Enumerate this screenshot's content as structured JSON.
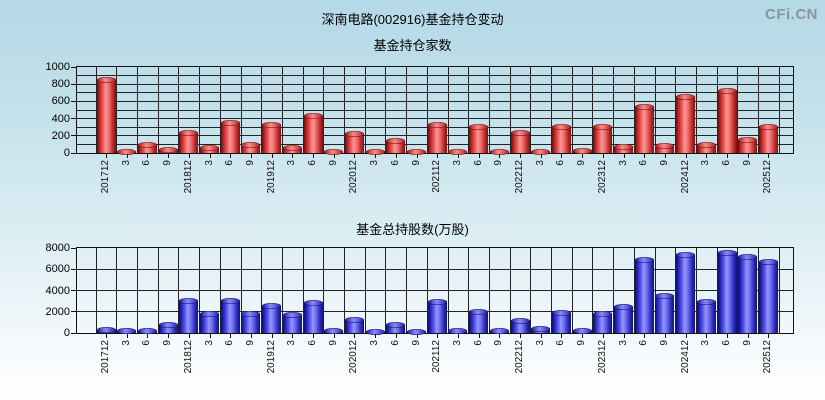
{
  "page": {
    "title": "深南电路(002916)基金持仓变动",
    "watermark": "CFi.CN",
    "background_top": "#b4d9e6",
    "background_bottom": "#ffffff",
    "grid_color": "#222222",
    "red_bar_color": "#e03030",
    "blue_bar_color": "#3535cc"
  },
  "chart_data": [
    {
      "type": "bar",
      "title": "基金持仓家数",
      "series_name": "基金持仓家数",
      "bar_style": "red",
      "legend": false,
      "grid": true,
      "ylim": [
        0,
        1000
      ],
      "ytick_step": 200,
      "grid_minor_step": 100,
      "ytick_labels": [
        "0",
        "200",
        "400",
        "600",
        "800",
        "1000"
      ],
      "categories": [
        "201712",
        "3",
        "6",
        "9",
        "201812",
        "3",
        "6",
        "9",
        "201912",
        "3",
        "6",
        "9",
        "202012",
        "3",
        "6",
        "9",
        "202112",
        "3",
        "6",
        "9",
        "202212",
        "3",
        "6",
        "9",
        "202312",
        "3",
        "6",
        "9",
        "202412",
        "3",
        "6",
        "9",
        "202512"
      ],
      "values": [
        850,
        10,
        90,
        30,
        235,
        60,
        345,
        90,
        320,
        60,
        430,
        15,
        220,
        10,
        140,
        10,
        330,
        15,
        305,
        15,
        235,
        10,
        300,
        25,
        300,
        70,
        530,
        80,
        650,
        95,
        720,
        155,
        300
      ]
    },
    {
      "type": "bar",
      "title": "基金总持股数(万股)",
      "series_name": "基金总持股数(万股)",
      "bar_style": "blue",
      "legend": false,
      "grid": true,
      "ylim": [
        0,
        8000
      ],
      "ytick_step": 2000,
      "grid_minor_step": 2000,
      "ytick_labels": [
        "0",
        "2000",
        "4000",
        "6000",
        "8000"
      ],
      "categories": [
        "201712",
        "3",
        "6",
        "9",
        "201812",
        "3",
        "6",
        "9",
        "201912",
        "3",
        "6",
        "9",
        "202012",
        "3",
        "6",
        "9",
        "202112",
        "3",
        "6",
        "9",
        "202212",
        "3",
        "6",
        "9",
        "202312",
        "3",
        "6",
        "9",
        "202412",
        "3",
        "6",
        "9",
        "202512"
      ],
      "values": [
        300,
        150,
        150,
        800,
        3000,
        1800,
        3050,
        1750,
        2500,
        1700,
        2850,
        150,
        1250,
        100,
        800,
        100,
        2900,
        150,
        1950,
        150,
        1100,
        400,
        1900,
        150,
        1800,
        2450,
        6900,
        3500,
        7300,
        2950,
        7500,
        7150,
        6700
      ]
    }
  ]
}
